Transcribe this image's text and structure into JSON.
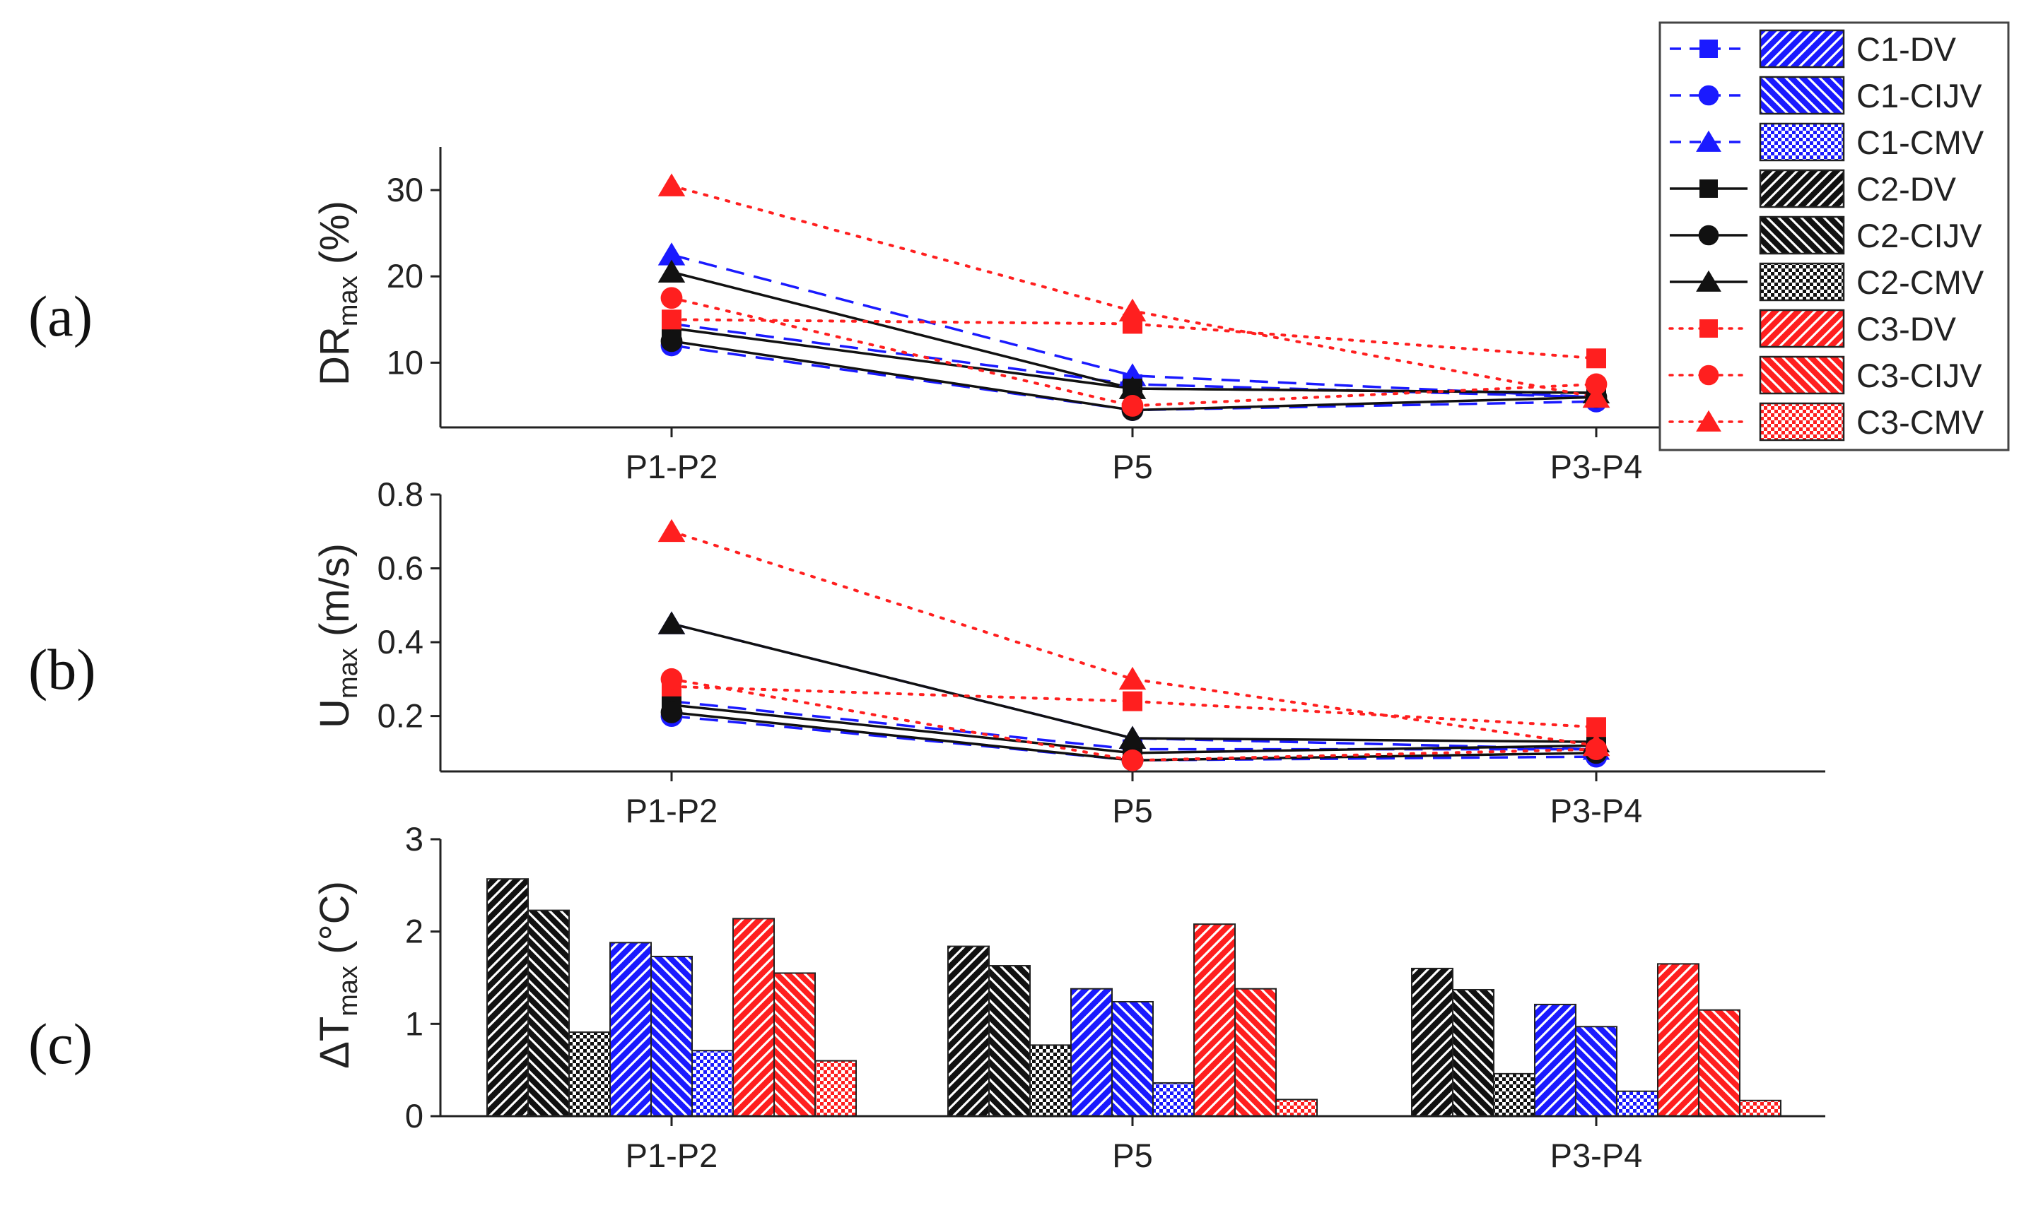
{
  "figure": {
    "panel_labels": [
      "(a)",
      "(b)",
      "(c)"
    ]
  },
  "colors": {
    "C1": "#1a1aff",
    "C2": "#111111",
    "C3": "#ff1f1f"
  },
  "chart_data": [
    {
      "type": "line",
      "panel": "(a)",
      "ylabel_main": "DR",
      "ylabel_sub": "max",
      "ylabel_unit": " (%)",
      "categories": [
        "P1-P2",
        "P5",
        "P3-P4"
      ],
      "ylim": [
        2.5,
        35
      ],
      "yticks": [
        10,
        20,
        30
      ],
      "series": [
        {
          "name": "C1-DV",
          "case": "C1",
          "marker": "square",
          "values": [
            14.5,
            7.5,
            6.0
          ]
        },
        {
          "name": "C1-CIJV",
          "case": "C1",
          "marker": "circle",
          "values": [
            12.0,
            4.5,
            5.5
          ]
        },
        {
          "name": "C1-CMV",
          "case": "C1",
          "marker": "triangle",
          "values": [
            22.5,
            8.5,
            6.0
          ]
        },
        {
          "name": "C2-DV",
          "case": "C2",
          "marker": "square",
          "values": [
            14.0,
            7.0,
            6.5
          ]
        },
        {
          "name": "C2-CIJV",
          "case": "C2",
          "marker": "circle",
          "values": [
            12.5,
            4.5,
            6.0
          ]
        },
        {
          "name": "C2-CMV",
          "case": "C2",
          "marker": "triangle",
          "values": [
            20.5,
            7.0,
            6.5
          ]
        },
        {
          "name": "C3-DV",
          "case": "C3",
          "marker": "square",
          "values": [
            15.0,
            14.5,
            10.5
          ]
        },
        {
          "name": "C3-CIJV",
          "case": "C3",
          "marker": "circle",
          "values": [
            17.5,
            5.0,
            7.5
          ]
        },
        {
          "name": "C3-CMV",
          "case": "C3",
          "marker": "triangle",
          "values": [
            30.5,
            16.0,
            6.0
          ]
        }
      ]
    },
    {
      "type": "line",
      "panel": "(b)",
      "ylabel_main": "U",
      "ylabel_sub": "max",
      "ylabel_unit": " (m/s)",
      "categories": [
        "P1-P2",
        "P5",
        "P3-P4"
      ],
      "ylim": [
        0.05,
        0.8
      ],
      "yticks": [
        0.2,
        0.4,
        0.6,
        0.8
      ],
      "series": [
        {
          "name": "C1-DV",
          "case": "C1",
          "marker": "square",
          "values": [
            0.24,
            0.11,
            0.11
          ]
        },
        {
          "name": "C1-CIJV",
          "case": "C1",
          "marker": "circle",
          "values": [
            0.2,
            0.08,
            0.09
          ]
        },
        {
          "name": "C1-CMV",
          "case": "C1",
          "marker": "triangle",
          "values": [
            0.45,
            0.14,
            0.11
          ]
        },
        {
          "name": "C2-DV",
          "case": "C2",
          "marker": "square",
          "values": [
            0.23,
            0.1,
            0.12
          ]
        },
        {
          "name": "C2-CIJV",
          "case": "C2",
          "marker": "circle",
          "values": [
            0.21,
            0.08,
            0.1
          ]
        },
        {
          "name": "C2-CMV",
          "case": "C2",
          "marker": "triangle",
          "values": [
            0.45,
            0.14,
            0.13
          ]
        },
        {
          "name": "C3-DV",
          "case": "C3",
          "marker": "square",
          "values": [
            0.28,
            0.24,
            0.17
          ]
        },
        {
          "name": "C3-CIJV",
          "case": "C3",
          "marker": "circle",
          "values": [
            0.3,
            0.08,
            0.11
          ]
        },
        {
          "name": "C3-CMV",
          "case": "C3",
          "marker": "triangle",
          "values": [
            0.7,
            0.3,
            0.12
          ]
        }
      ]
    },
    {
      "type": "bar",
      "panel": "(c)",
      "ylabel_main": "ΔT",
      "ylabel_sub": "max",
      "ylabel_unit": " (°C)",
      "categories": [
        "P1-P2",
        "P5",
        "P3-P4"
      ],
      "ylim": [
        0,
        3
      ],
      "yticks": [
        0,
        1,
        2,
        3
      ],
      "series": [
        {
          "name": "C2-DV",
          "case": "C2",
          "pattern": "fwd",
          "values": [
            2.57,
            1.84,
            1.6
          ]
        },
        {
          "name": "C2-CIJV",
          "case": "C2",
          "pattern": "back",
          "values": [
            2.23,
            1.63,
            1.37
          ]
        },
        {
          "name": "C2-CMV",
          "case": "C2",
          "pattern": "mesh",
          "values": [
            0.91,
            0.77,
            0.46
          ]
        },
        {
          "name": "C1-DV",
          "case": "C1",
          "pattern": "fwd",
          "values": [
            1.88,
            1.38,
            1.21
          ]
        },
        {
          "name": "C1-CIJV",
          "case": "C1",
          "pattern": "back",
          "values": [
            1.73,
            1.24,
            0.97
          ]
        },
        {
          "name": "C1-CMV",
          "case": "C1",
          "pattern": "mesh",
          "values": [
            0.71,
            0.36,
            0.27
          ]
        },
        {
          "name": "C3-DV",
          "case": "C3",
          "pattern": "fwd",
          "values": [
            2.14,
            2.08,
            1.65
          ]
        },
        {
          "name": "C3-CIJV",
          "case": "C3",
          "pattern": "back",
          "values": [
            1.55,
            1.38,
            1.15
          ]
        },
        {
          "name": "C3-CMV",
          "case": "C3",
          "pattern": "mesh",
          "values": [
            0.6,
            0.18,
            0.17
          ]
        }
      ]
    }
  ],
  "legend": {
    "placement": "top-right",
    "entries": [
      {
        "label": "C1-DV",
        "case": "C1",
        "marker": "square",
        "pattern": "fwd"
      },
      {
        "label": "C1-CIJV",
        "case": "C1",
        "marker": "circle",
        "pattern": "back"
      },
      {
        "label": "C1-CMV",
        "case": "C1",
        "marker": "triangle",
        "pattern": "mesh"
      },
      {
        "label": "C2-DV",
        "case": "C2",
        "marker": "square",
        "pattern": "fwd"
      },
      {
        "label": "C2-CIJV",
        "case": "C2",
        "marker": "circle",
        "pattern": "back"
      },
      {
        "label": "C2-CMV",
        "case": "C2",
        "marker": "triangle",
        "pattern": "mesh"
      },
      {
        "label": "C3-DV",
        "case": "C3",
        "marker": "square",
        "pattern": "fwd"
      },
      {
        "label": "C3-CIJV",
        "case": "C3",
        "marker": "circle",
        "pattern": "back"
      },
      {
        "label": "C3-CMV",
        "case": "C3",
        "marker": "triangle",
        "pattern": "mesh"
      }
    ]
  }
}
